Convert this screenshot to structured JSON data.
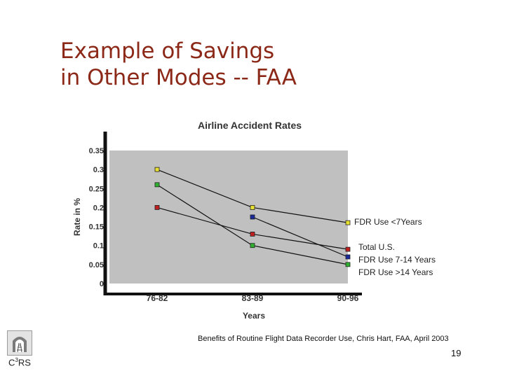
{
  "slide": {
    "title_line1": "Example of Savings",
    "title_line2": "in Other Modes -- FAA",
    "citation": "Benefits of Routine Flight Data Recorder Use, Chris Hart, FAA, April 2003",
    "page_number": "19",
    "logo": {
      "pre": "C",
      "sup": "3",
      "post": "RS"
    }
  },
  "chart_data": {
    "type": "line",
    "title": "Airline Accident Rates",
    "xlabel": "Years",
    "ylabel": "Rate in %",
    "categories": [
      "76-82",
      "83-89",
      "90-96"
    ],
    "ylim": [
      0,
      0.35
    ],
    "yticks": [
      0,
      0.05,
      0.1,
      0.15,
      0.2,
      0.25,
      0.3,
      0.35
    ],
    "ytick_labels": [
      "0",
      "0.05",
      "0.1",
      "0.15",
      "0.2",
      "0.25",
      "0.3",
      "0.35"
    ],
    "grid": false,
    "plot_background": "#c0c0c0",
    "legend_placement": "right (inline labels at series ends)",
    "series": [
      {
        "name": "FDR Use <7Years",
        "values": [
          0.3,
          0.2,
          0.16
        ],
        "marker_color": "#e8e030"
      },
      {
        "name": "Total U.S.",
        "values": [
          0.2,
          0.13,
          0.09
        ],
        "marker_color": "#c02020"
      },
      {
        "name": "FDR Use 7-14 Years",
        "values": [
          null,
          0.175,
          0.07
        ],
        "marker_color": "#1a2a9a"
      },
      {
        "name": "FDR Use >14 Years",
        "values": [
          0.26,
          0.1,
          0.05
        ],
        "marker_color": "#30b030"
      }
    ],
    "line_color": "#111111"
  }
}
